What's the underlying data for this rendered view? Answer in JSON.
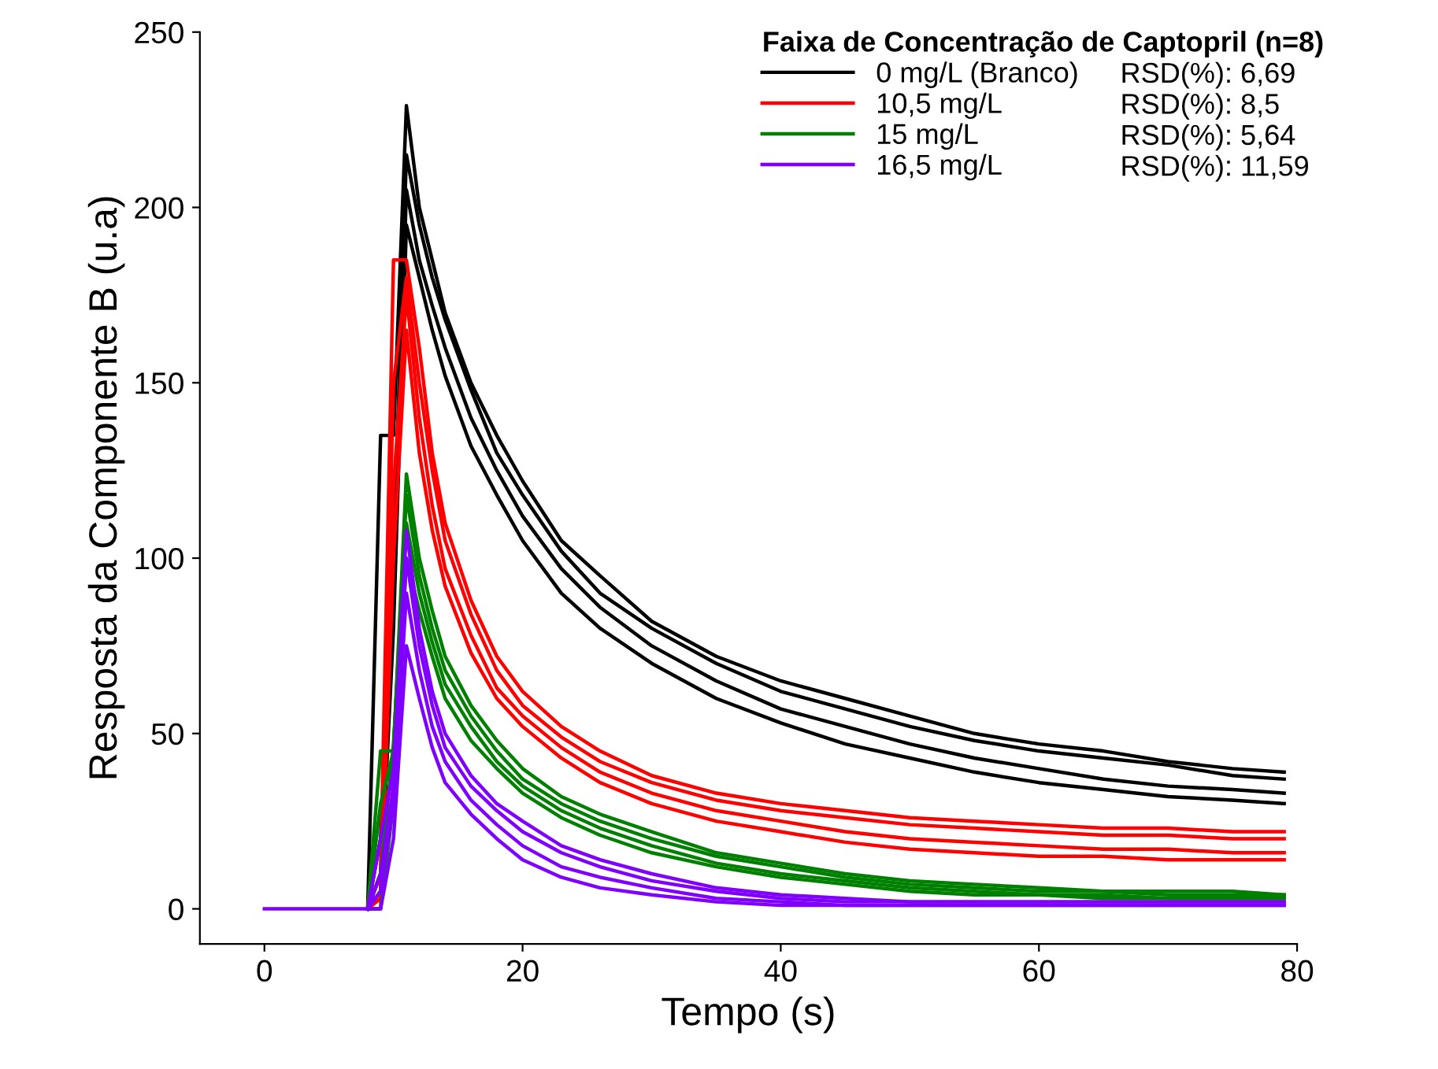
{
  "chart_data": {
    "type": "line",
    "xlabel": "Tempo (s)",
    "ylabel": "Resposta da Componente B (u.a)",
    "legend_title": "Faixa de Concentração de Captopril (n=8)",
    "legend": "top right",
    "grid": false,
    "marker": "none",
    "line_style": "solid",
    "xlim": [
      -5,
      80
    ],
    "ylim": [
      -10,
      250
    ],
    "xticks": [
      0,
      20,
      40,
      60,
      80
    ],
    "yticks": [
      0,
      50,
      100,
      150,
      200,
      250
    ],
    "x": [
      0,
      7,
      8,
      9,
      10,
      11,
      12,
      13,
      14,
      16,
      18,
      20,
      23,
      26,
      30,
      35,
      40,
      45,
      50,
      55,
      60,
      65,
      70,
      75,
      79
    ],
    "series": [
      {
        "name": "0 mg/L (Branco)",
        "color": "#000000",
        "values": [
          null,
          null,
          0,
          135,
          135,
          229,
          200,
          185,
          170,
          150,
          135,
          122,
          105,
          95,
          82,
          72,
          65,
          60,
          55,
          50,
          47,
          45,
          42,
          40,
          39
        ]
      },
      {
        "color": "#000000",
        "values": [
          null,
          null,
          0,
          20,
          100,
          215,
          195,
          180,
          168,
          148,
          130,
          118,
          102,
          90,
          80,
          70,
          62,
          57,
          52,
          48,
          45,
          43,
          41,
          38,
          37
        ]
      },
      {
        "color": "#000000",
        "values": [
          null,
          null,
          0,
          10,
          90,
          205,
          185,
          172,
          160,
          140,
          125,
          112,
          97,
          86,
          75,
          65,
          57,
          52,
          47,
          43,
          40,
          37,
          35,
          34,
          33
        ]
      },
      {
        "color": "#000000",
        "values": [
          null,
          null,
          0,
          5,
          80,
          195,
          180,
          165,
          152,
          132,
          118,
          105,
          90,
          80,
          70,
          60,
          53,
          47,
          43,
          39,
          36,
          34,
          32,
          31,
          30
        ]
      },
      {
        "name": "10,5 mg/L",
        "color": "#ff0000",
        "values": [
          null,
          null,
          0,
          10,
          185,
          185,
          160,
          130,
          110,
          88,
          72,
          62,
          52,
          45,
          38,
          33,
          30,
          28,
          26,
          25,
          24,
          23,
          23,
          22,
          22
        ]
      },
      {
        "color": "#ff0000",
        "values": [
          null,
          null,
          0,
          5,
          150,
          180,
          150,
          125,
          105,
          84,
          68,
          58,
          49,
          42,
          36,
          31,
          28,
          26,
          24,
          23,
          22,
          21,
          21,
          20,
          20
        ]
      },
      {
        "color": "#ff0000",
        "values": [
          null,
          null,
          0,
          3,
          120,
          175,
          140,
          115,
          97,
          78,
          63,
          55,
          46,
          39,
          33,
          28,
          25,
          22,
          20,
          19,
          18,
          17,
          17,
          16,
          16
        ]
      },
      {
        "color": "#ff0000",
        "values": [
          null,
          null,
          0,
          0,
          100,
          165,
          130,
          108,
          92,
          73,
          60,
          52,
          43,
          36,
          30,
          25,
          22,
          19,
          17,
          16,
          15,
          15,
          14,
          14,
          14
        ]
      },
      {
        "name": "15 mg/L",
        "color": "#008000",
        "values": [
          null,
          null,
          0,
          45,
          45,
          124,
          100,
          85,
          72,
          58,
          48,
          40,
          32,
          27,
          22,
          16,
          13,
          10,
          8,
          7,
          6,
          5,
          5,
          5,
          4
        ]
      },
      {
        "color": "#008000",
        "values": [
          null,
          null,
          0,
          30,
          45,
          118,
          95,
          80,
          68,
          55,
          45,
          37,
          30,
          25,
          20,
          15,
          12,
          9,
          7,
          6,
          5,
          5,
          4,
          4,
          4
        ]
      },
      {
        "color": "#008000",
        "values": [
          null,
          null,
          0,
          10,
          47,
          110,
          90,
          76,
          64,
          52,
          42,
          35,
          28,
          23,
          18,
          13,
          10,
          8,
          6,
          5,
          4,
          4,
          3,
          3,
          3
        ]
      },
      {
        "color": "#008000",
        "values": [
          null,
          null,
          0,
          0,
          30,
          100,
          85,
          72,
          60,
          48,
          40,
          33,
          26,
          21,
          16,
          12,
          9,
          7,
          5,
          4,
          4,
          3,
          3,
          3,
          3
        ]
      },
      {
        "name": "16,5 mg/L",
        "color": "#8000ff",
        "values": [
          null,
          null,
          0,
          20,
          40,
          108,
          80,
          62,
          50,
          38,
          30,
          25,
          18,
          14,
          10,
          6,
          4,
          3,
          2,
          2,
          2,
          2,
          2,
          2,
          2
        ]
      },
      {
        "color": "#8000ff",
        "values": [
          null,
          null,
          0,
          10,
          35,
          100,
          75,
          58,
          46,
          35,
          28,
          22,
          16,
          12,
          8,
          5,
          3,
          2,
          2,
          2,
          2,
          2,
          2,
          2,
          2
        ]
      },
      {
        "color": "#8000ff",
        "values": [
          null,
          null,
          0,
          5,
          30,
          90,
          68,
          52,
          42,
          31,
          24,
          18,
          12,
          9,
          6,
          3,
          2,
          1,
          1,
          1,
          1,
          1,
          1,
          1,
          1
        ]
      },
      {
        "color": "#8000ff",
        "values": [
          0,
          0,
          0,
          0,
          20,
          75,
          60,
          46,
          36,
          27,
          20,
          14,
          9,
          6,
          4,
          2,
          1,
          1,
          1,
          1,
          1,
          1,
          1,
          1,
          1
        ]
      }
    ],
    "annotations": [
      "RSD(%): 6,69",
      "RSD(%): 8,5",
      "RSD(%): 5,64",
      "RSD(%): 11,59"
    ]
  }
}
